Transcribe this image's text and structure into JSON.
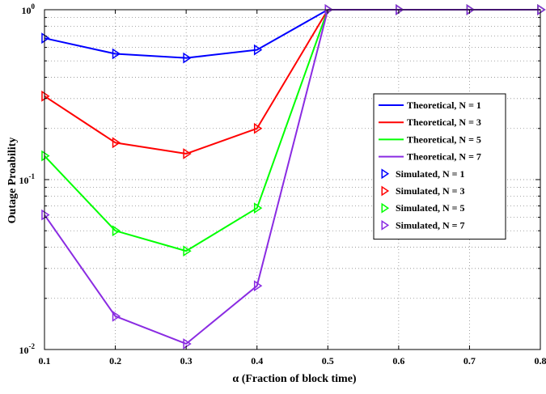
{
  "chart_data": {
    "type": "line",
    "xlabel": "α (Fraction of block time)",
    "ylabel": "Outage Proability",
    "x": [
      0.1,
      0.2,
      0.3,
      0.4,
      0.5,
      0.6,
      0.7,
      0.8
    ],
    "xlim": [
      0.1,
      0.8
    ],
    "ylim": [
      0.01,
      1
    ],
    "yscale": "log",
    "grid": true,
    "legend_position": "right",
    "x_tick_labels": [
      "0.1",
      "0.2",
      "0.3",
      "0.4",
      "0.5",
      "0.6",
      "0.7",
      "0.8"
    ],
    "y_ticks": [
      {
        "value": 0.01,
        "base": "10",
        "exp": "-2"
      },
      {
        "value": 0.1,
        "base": "10",
        "exp": "-1"
      },
      {
        "value": 1,
        "base": "10",
        "exp": "0"
      }
    ],
    "series": [
      {
        "name": "Theoretical, N = 1",
        "color": "#0000ff",
        "style": "line",
        "values": [
          0.68,
          0.55,
          0.52,
          0.58,
          1,
          1,
          1,
          1
        ]
      },
      {
        "name": "Theoretical, N = 3",
        "color": "#ff0000",
        "style": "line",
        "values": [
          0.31,
          0.165,
          0.142,
          0.2,
          1,
          1,
          1,
          1
        ]
      },
      {
        "name": "Theoretical, N = 5",
        "color": "#00ff00",
        "style": "line",
        "values": [
          0.138,
          0.05,
          0.038,
          0.068,
          1,
          1,
          1,
          1
        ]
      },
      {
        "name": "Theoretical, N = 7",
        "color": "#8a2be2",
        "style": "line",
        "values": [
          0.062,
          0.0157,
          0.0108,
          0.0237,
          1,
          1,
          1,
          1
        ]
      },
      {
        "name": "Simulated, N = 1",
        "color": "#0000ff",
        "style": "marker",
        "values": [
          0.68,
          0.55,
          0.52,
          0.58,
          1,
          1,
          1,
          1
        ]
      },
      {
        "name": "Simulated, N = 3",
        "color": "#ff0000",
        "style": "marker",
        "values": [
          0.31,
          0.165,
          0.142,
          0.2,
          1,
          1,
          1,
          1
        ]
      },
      {
        "name": "Simulated, N = 5",
        "color": "#00ff00",
        "style": "marker",
        "values": [
          0.138,
          0.05,
          0.038,
          0.068,
          1,
          1,
          1,
          1
        ]
      },
      {
        "name": "Simulated, N = 7",
        "color": "#8a2be2",
        "style": "marker",
        "values": [
          0.062,
          0.0157,
          0.0108,
          0.0237,
          1,
          1,
          1,
          1
        ]
      }
    ]
  }
}
